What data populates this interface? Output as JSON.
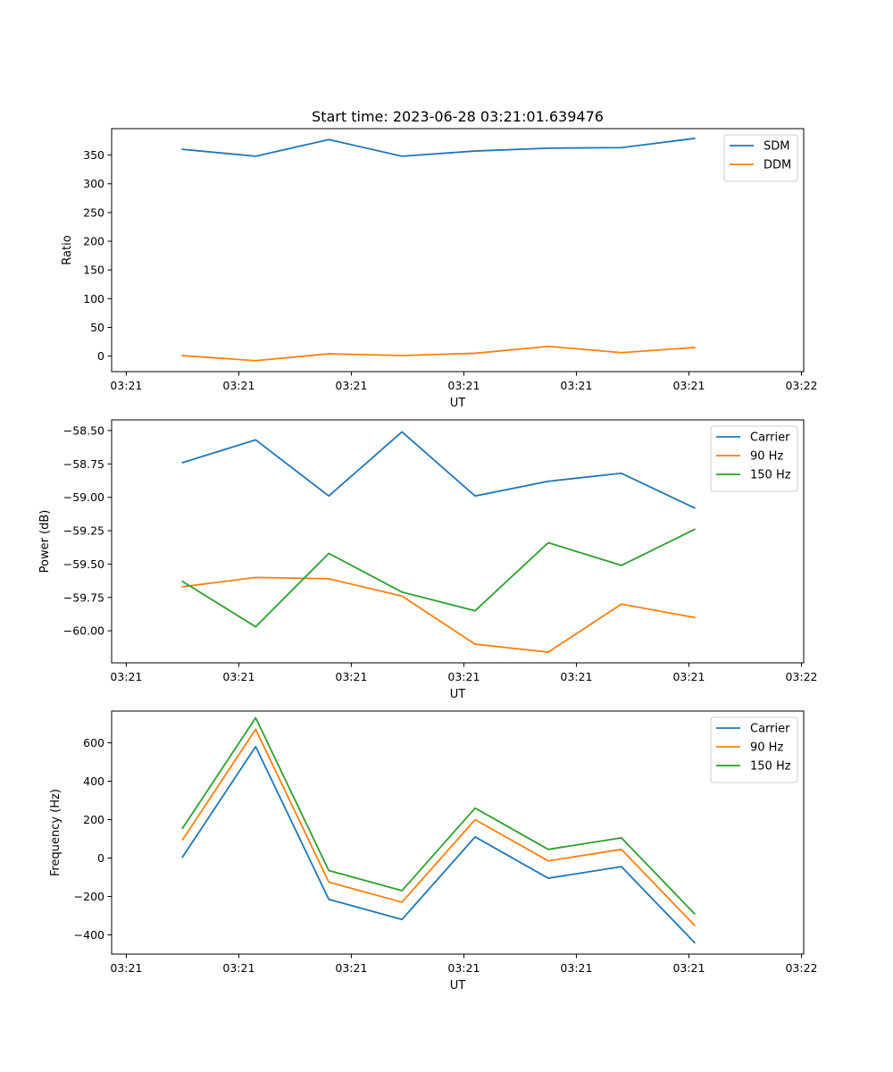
{
  "figure": {
    "title": "Start time: 2023-06-28 03:21:01.639476"
  },
  "chart_data": [
    {
      "type": "line",
      "title": "Start time: 2023-06-28 03:21:01.639476",
      "xlabel": "UT",
      "ylabel": "Ratio",
      "x_tick_labels": [
        "03:21",
        "03:21",
        "03:21",
        "03:21",
        "03:21",
        "03:21",
        "03:22"
      ],
      "x_ticks": [
        0,
        1,
        2,
        3,
        4,
        5,
        6
      ],
      "xlim": [
        -0.13,
        6.02
      ],
      "x": [
        0.5,
        1.15,
        1.8,
        2.45,
        3.1,
        3.75,
        4.4,
        5.05
      ],
      "ylim": [
        -27,
        396
      ],
      "y_ticks": [
        0,
        50,
        100,
        150,
        200,
        250,
        300,
        350
      ],
      "y_tick_labels": [
        "0",
        "50",
        "100",
        "150",
        "200",
        "250",
        "300",
        "350"
      ],
      "legend": "top-right",
      "grid": false,
      "series": [
        {
          "name": "SDM",
          "color": "#1f77b4",
          "values": [
            360,
            348,
            377,
            348,
            357,
            362,
            363,
            379
          ]
        },
        {
          "name": "DDM",
          "color": "#ff7f0e",
          "values": [
            1,
            -8,
            4,
            1,
            5,
            17,
            6,
            15
          ]
        }
      ]
    },
    {
      "type": "line",
      "title": "",
      "xlabel": "UT",
      "ylabel": "Power (dB)",
      "x_tick_labels": [
        "03:21",
        "03:21",
        "03:21",
        "03:21",
        "03:21",
        "03:21",
        "03:22"
      ],
      "x_ticks": [
        0,
        1,
        2,
        3,
        4,
        5,
        6
      ],
      "xlim": [
        -0.13,
        6.02
      ],
      "x": [
        0.5,
        1.15,
        1.8,
        2.45,
        3.1,
        3.75,
        4.4,
        5.05
      ],
      "ylim": [
        -60.24,
        -58.42
      ],
      "y_ticks": [
        -60.0,
        -59.75,
        -59.5,
        -59.25,
        -59.0,
        -58.75,
        -58.5
      ],
      "y_tick_labels": [
        "−60.00",
        "−59.75",
        "−59.50",
        "−59.25",
        "−59.00",
        "−58.75",
        "−58.50"
      ],
      "legend": "top-right",
      "grid": false,
      "series": [
        {
          "name": "Carrier",
          "color": "#1f77b4",
          "values": [
            -58.74,
            -58.57,
            -58.99,
            -58.51,
            -58.99,
            -58.88,
            -58.82,
            -59.08
          ]
        },
        {
          "name": "90 Hz",
          "color": "#ff7f0e",
          "values": [
            -59.67,
            -59.6,
            -59.61,
            -59.74,
            -60.1,
            -60.16,
            -59.8,
            -59.9
          ]
        },
        {
          "name": "150 Hz",
          "color": "#2ca02c",
          "values": [
            -59.63,
            -59.97,
            -59.42,
            -59.71,
            -59.85,
            -59.34,
            -59.51,
            -59.24
          ]
        }
      ]
    },
    {
      "type": "line",
      "title": "",
      "xlabel": "UT",
      "ylabel": "Frequency (Hz)",
      "x_tick_labels": [
        "03:21",
        "03:21",
        "03:21",
        "03:21",
        "03:21",
        "03:21",
        "03:22"
      ],
      "x_ticks": [
        0,
        1,
        2,
        3,
        4,
        5,
        6
      ],
      "xlim": [
        -0.13,
        6.02
      ],
      "x": [
        0.5,
        1.15,
        1.8,
        2.45,
        3.1,
        3.75,
        4.4,
        5.05
      ],
      "ylim": [
        -500,
        765
      ],
      "y_ticks": [
        -400,
        -200,
        0,
        200,
        400,
        600
      ],
      "y_tick_labels": [
        "−400",
        "−200",
        "0",
        "200",
        "400",
        "600"
      ],
      "legend": "top-right",
      "grid": false,
      "series": [
        {
          "name": "Carrier",
          "color": "#1f77b4",
          "values": [
            5,
            580,
            -215,
            -320,
            110,
            -105,
            -45,
            -440
          ]
        },
        {
          "name": "90 Hz",
          "color": "#ff7f0e",
          "values": [
            95,
            670,
            -125,
            -230,
            200,
            -15,
            45,
            -350
          ]
        },
        {
          "name": "150 Hz",
          "color": "#2ca02c",
          "values": [
            155,
            730,
            -65,
            -170,
            260,
            45,
            105,
            -290
          ]
        }
      ]
    }
  ]
}
